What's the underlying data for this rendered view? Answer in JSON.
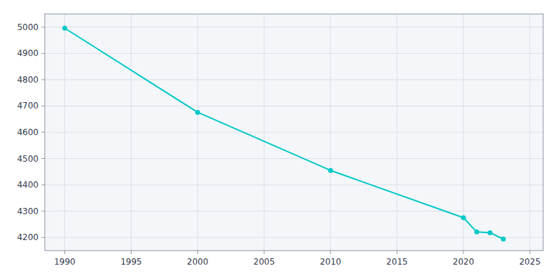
{
  "chart_data": {
    "type": "line",
    "x": [
      1990,
      2000,
      2010,
      2020,
      2021,
      2022,
      2023
    ],
    "values": [
      4996,
      4676,
      4455,
      4275,
      4221,
      4218,
      4194
    ],
    "color": "#00c8c8",
    "marker": "circle",
    "xlim": [
      1988.5,
      2026
    ],
    "ylim": [
      4150,
      5050
    ],
    "xticks": [
      1990,
      1995,
      2000,
      2005,
      2010,
      2015,
      2020,
      2025
    ],
    "yticks": [
      4200,
      4300,
      4400,
      4500,
      4600,
      4700,
      4800,
      4900,
      5000
    ],
    "grid": true
  }
}
